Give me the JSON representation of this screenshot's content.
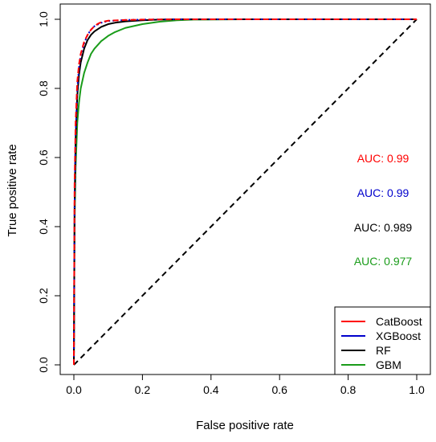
{
  "chart_data": {
    "type": "line",
    "title": "",
    "xlabel": "False positive rate",
    "ylabel": "True positive rate",
    "xlim": [
      0,
      1
    ],
    "ylim": [
      0,
      1
    ],
    "x_ticks": [
      "0.0",
      "0.2",
      "0.4",
      "0.6",
      "0.8",
      "1.0"
    ],
    "y_ticks": [
      "0.0",
      "0.2",
      "0.4",
      "0.6",
      "0.8",
      "1.0"
    ],
    "grid": false,
    "legend_position": "bottom-right",
    "series": [
      {
        "name": "CatBoost",
        "color": "#ff0000",
        "dash": "long",
        "auc": "AUC: 0.99",
        "x": [
          0,
          0.002,
          0.005,
          0.01,
          0.015,
          0.02,
          0.03,
          0.04,
          0.05,
          0.06,
          0.07,
          0.08,
          0.1,
          0.15,
          0.2,
          0.3,
          0.5,
          1
        ],
        "y": [
          0,
          0.52,
          0.7,
          0.82,
          0.87,
          0.9,
          0.935,
          0.955,
          0.97,
          0.98,
          0.987,
          0.992,
          0.996,
          0.998,
          0.999,
          1,
          1,
          1
        ]
      },
      {
        "name": "XGBoost",
        "color": "#0000cc",
        "dash": "dotted",
        "auc": "AUC: 0.99",
        "x": [
          0,
          0.002,
          0.005,
          0.01,
          0.015,
          0.02,
          0.03,
          0.04,
          0.05,
          0.06,
          0.08,
          0.1,
          0.15,
          0.2,
          0.3,
          0.5,
          1
        ],
        "y": [
          0,
          0.45,
          0.66,
          0.8,
          0.86,
          0.895,
          0.93,
          0.955,
          0.97,
          0.98,
          0.99,
          0.995,
          0.998,
          0.999,
          1,
          1,
          1
        ]
      },
      {
        "name": "RF",
        "color": "#000000",
        "dash": "solid",
        "auc": "AUC: 0.989",
        "x": [
          0,
          0.002,
          0.005,
          0.01,
          0.015,
          0.02,
          0.03,
          0.04,
          0.05,
          0.06,
          0.08,
          0.1,
          0.12,
          0.15,
          0.2,
          0.25,
          0.3,
          0.5,
          1
        ],
        "y": [
          0,
          0.45,
          0.65,
          0.78,
          0.84,
          0.875,
          0.915,
          0.94,
          0.955,
          0.965,
          0.978,
          0.986,
          0.99,
          0.994,
          0.997,
          0.999,
          1,
          1,
          1
        ]
      },
      {
        "name": "GBM",
        "color": "#1a9c1a",
        "dash": "solid",
        "auc": "AUC: 0.977",
        "x": [
          0,
          0.002,
          0.005,
          0.01,
          0.015,
          0.02,
          0.03,
          0.04,
          0.05,
          0.06,
          0.08,
          0.1,
          0.12,
          0.15,
          0.2,
          0.25,
          0.3,
          0.35,
          0.5,
          1
        ],
        "y": [
          0,
          0.4,
          0.57,
          0.7,
          0.76,
          0.8,
          0.845,
          0.875,
          0.9,
          0.915,
          0.937,
          0.952,
          0.963,
          0.975,
          0.986,
          0.993,
          0.997,
          0.999,
          1,
          1
        ]
      }
    ],
    "reference_line": {
      "x": [
        0,
        1
      ],
      "y": [
        0,
        1
      ],
      "color": "#000000",
      "dash": "dashed"
    }
  }
}
